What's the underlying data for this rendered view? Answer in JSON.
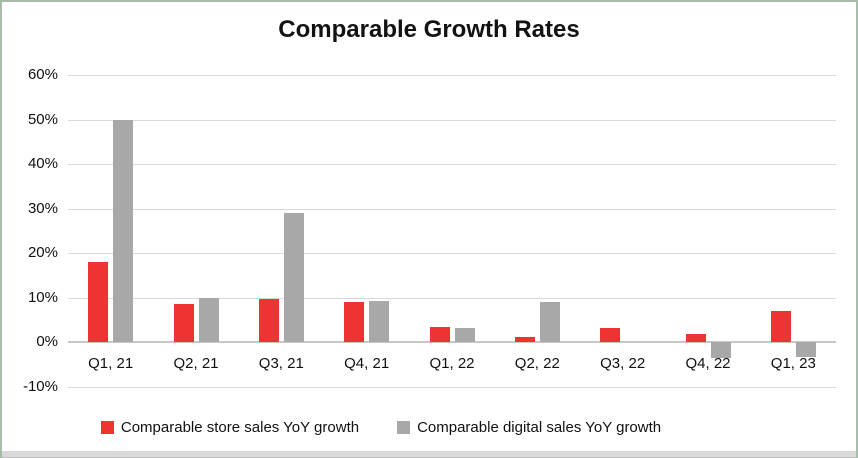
{
  "window": {
    "frame_color": "#a9bba9",
    "bottom_strip_color": "#d9d9d9",
    "background": "#ffffff"
  },
  "chart_data": {
    "type": "bar",
    "title": "Comparable Growth Rates",
    "categories": [
      "Q1, 21",
      "Q2, 21",
      "Q3, 21",
      "Q4, 21",
      "Q1, 22",
      "Q2, 22",
      "Q3, 22",
      "Q4, 22",
      "Q1, 23"
    ],
    "series": [
      {
        "name": "Comparable store sales YoY growth",
        "color": "#ee3433",
        "values": [
          18,
          8.7,
          9.7,
          9,
          3.4,
          1.3,
          3.2,
          1.9,
          7
        ]
      },
      {
        "name": "Comparable digital sales YoY growth",
        "color": "#a8a8a8",
        "values": [
          50,
          10,
          29,
          9.2,
          3.2,
          9,
          0,
          -3.4,
          -3.2
        ]
      }
    ],
    "ylabel": "",
    "xlabel": "",
    "ylim": [
      -10,
      60
    ],
    "y_tick_step": 10,
    "y_tick_labels": [
      "60%",
      "50%",
      "40%",
      "30%",
      "20%",
      "10%",
      "0%",
      "-10%"
    ],
    "grid": true,
    "gridline_color": "#d9d9d9",
    "legend_position": "bottom"
  }
}
